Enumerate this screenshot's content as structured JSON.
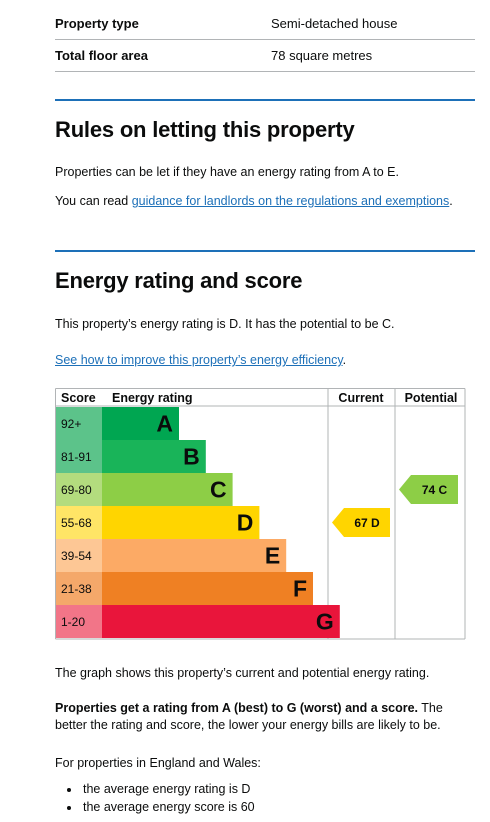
{
  "summary": {
    "rows": [
      {
        "key": "Property type",
        "value": "Semi-detached house"
      },
      {
        "key": "Total floor area",
        "value": "78 square metres"
      }
    ]
  },
  "letting": {
    "title": "Rules on letting this property",
    "p1": "Properties can be let if they have an energy rating from A to E.",
    "p2_prefix": "You can read ",
    "p2_link": "guidance for landlords on the regulations and exemptions",
    "p2_suffix": "."
  },
  "energy": {
    "title": "Energy rating and score",
    "p1": "This property’s energy rating is D. It has the potential to be C.",
    "link": "See how to improve this property’s energy efficiency",
    "link_suffix": "."
  },
  "chart_data": {
    "type": "bar",
    "headers": {
      "score": "Score",
      "rating": "Energy rating",
      "current": "Current",
      "potential": "Potential"
    },
    "bands": [
      {
        "score": "92+",
        "letter": "A",
        "color": "#00a651",
        "score_bg": "#5cc38a"
      },
      {
        "score": "81-91",
        "letter": "B",
        "color": "#19b459",
        "score_bg": "#5cc38a"
      },
      {
        "score": "69-80",
        "letter": "C",
        "color": "#8dce46",
        "score_bg": "#b3dc7e"
      },
      {
        "score": "55-68",
        "letter": "D",
        "color": "#ffd500",
        "score_bg": "#ffe566"
      },
      {
        "score": "39-54",
        "letter": "E",
        "color": "#fcaa65",
        "score_bg": "#fdc795"
      },
      {
        "score": "21-38",
        "letter": "F",
        "color": "#ef8023",
        "score_bg": "#f4a86a"
      },
      {
        "score": "1-20",
        "letter": "G",
        "color": "#e9153b",
        "score_bg": "#f27588"
      }
    ],
    "current": {
      "score": 67,
      "band": "D",
      "label": "67 D",
      "color": "#ffd500"
    },
    "potential": {
      "score": 74,
      "band": "C",
      "label": "74 C",
      "color": "#8dce46"
    }
  },
  "after_chart": {
    "p1": "The graph shows this property’s current and potential energy rating.",
    "p2_bold": "Properties get a rating from A (best) to G (worst) and a score.",
    "p2_rest": " The better the rating and score, the lower your energy bills are likely to be.",
    "p3": "For properties in England and Wales:",
    "bullets": [
      "the average energy rating is D",
      "the average energy score is 60"
    ]
  }
}
